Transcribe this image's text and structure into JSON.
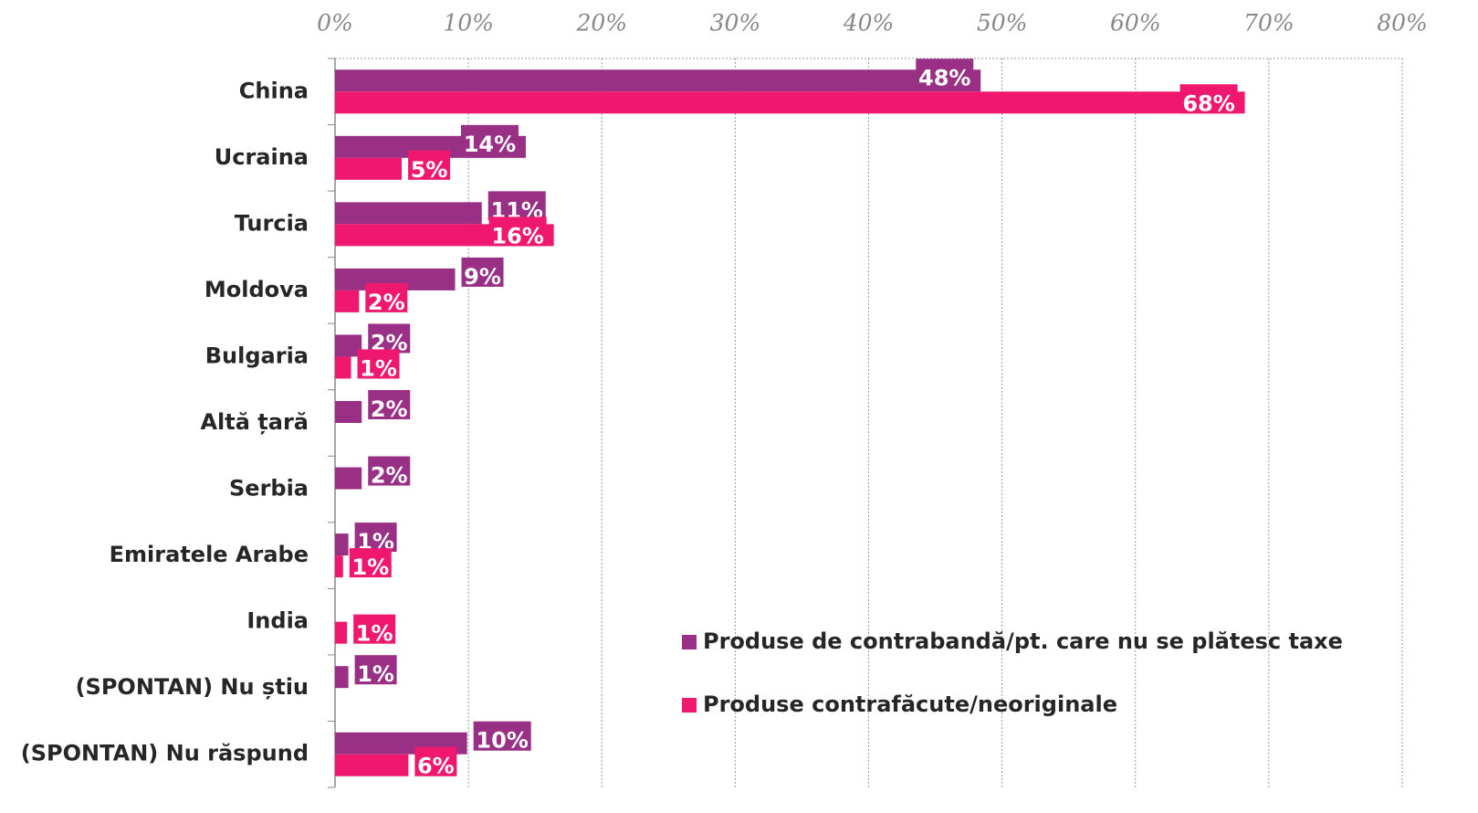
{
  "chart_data": {
    "type": "bar",
    "orientation": "horizontal",
    "categories": [
      "China",
      "Ucraina",
      "Turcia",
      "Moldova",
      "Bulgaria",
      "Altă țară",
      "Serbia",
      "Emiratele Arabe",
      "India",
      "(SPONTAN) Nu știu",
      "(SPONTAN) Nu răspund"
    ],
    "series": [
      {
        "name": "Produse de contrabandă/pt. care nu se plătesc taxe",
        "color": "#993085",
        "values": [
          48.4,
          14.3,
          11.0,
          9.0,
          2,
          2,
          2,
          1,
          null,
          1,
          9.9
        ],
        "value_labels": [
          "48%",
          "14%",
          "11%",
          "9%",
          "2%",
          "2%",
          "2%",
          "1%",
          null,
          "1%",
          "10%"
        ]
      },
      {
        "name": "Produse contrafăcute/neoriginale",
        "color": "#f0186e",
        "values": [
          68.2,
          5,
          16.4,
          1.8,
          1.2,
          null,
          null,
          0.6,
          0.9,
          null,
          5.5
        ],
        "value_labels": [
          "68%",
          "5%",
          "16%",
          "2%",
          "1%",
          null,
          null,
          "1%",
          "1%",
          null,
          "6%"
        ]
      }
    ],
    "xlim": [
      0,
      80
    ],
    "xticks": [
      {
        "value": 0,
        "label": "0%"
      },
      {
        "value": 10,
        "label": "10%"
      },
      {
        "value": 20,
        "label": "20%"
      },
      {
        "value": 30,
        "label": "30%"
      },
      {
        "value": 40,
        "label": "40%"
      },
      {
        "value": 50,
        "label": "50%"
      },
      {
        "value": 60,
        "label": "60%"
      },
      {
        "value": 70,
        "label": "70%"
      },
      {
        "value": 80,
        "label": "80%"
      }
    ],
    "grid": true,
    "legend": "lower right"
  }
}
